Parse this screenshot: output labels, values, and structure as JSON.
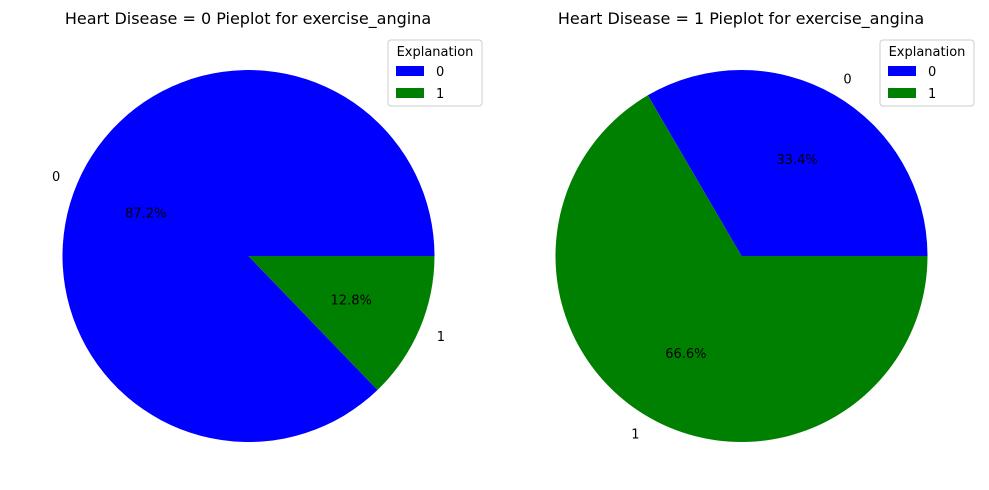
{
  "chart_data": [
    {
      "type": "pie",
      "title": "Heart Disease = 0 Pieplot for exercise_angina",
      "categories": [
        "0",
        "1"
      ],
      "values": [
        87.2,
        12.8
      ],
      "percent_labels": [
        "87.2%",
        "12.8%"
      ],
      "colors": [
        "#0000ff",
        "#008000"
      ],
      "legend": {
        "title": "Explanation",
        "entries": [
          "0",
          "1"
        ],
        "placement": "top-right"
      }
    },
    {
      "type": "pie",
      "title": "Heart Disease = 1 Pieplot for exercise_angina",
      "categories": [
        "0",
        "1"
      ],
      "values": [
        33.4,
        66.6
      ],
      "percent_labels": [
        "33.4%",
        "66.6%"
      ],
      "colors": [
        "#0000ff",
        "#008000"
      ],
      "legend": {
        "title": "Explanation",
        "entries": [
          "0",
          "1"
        ],
        "placement": "top-right"
      }
    }
  ]
}
